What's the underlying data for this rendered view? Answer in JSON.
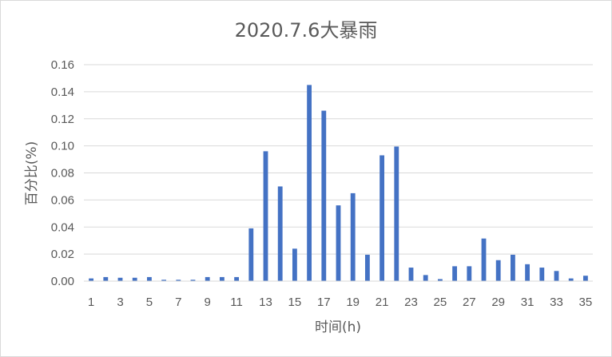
{
  "chart_data": {
    "type": "bar",
    "title": "2020.7.6大暴雨",
    "xlabel": "时间(h)",
    "ylabel": "百分比(%)",
    "ylim": [
      0,
      0.16
    ],
    "yticks": [
      "0.00",
      "0.02",
      "0.04",
      "0.06",
      "0.08",
      "0.10",
      "0.12",
      "0.14",
      "0.16"
    ],
    "categories": [
      1,
      2,
      3,
      4,
      5,
      6,
      7,
      8,
      9,
      10,
      11,
      12,
      13,
      14,
      15,
      16,
      17,
      18,
      19,
      20,
      21,
      22,
      23,
      24,
      25,
      26,
      27,
      28,
      29,
      30,
      31,
      32,
      33,
      34,
      35
    ],
    "xtick_labels": [
      "1",
      "3",
      "5",
      "7",
      "9",
      "11",
      "13",
      "15",
      "17",
      "19",
      "21",
      "23",
      "25",
      "27",
      "29",
      "31",
      "33",
      "35"
    ],
    "values": [
      0.002,
      0.003,
      0.0025,
      0.0025,
      0.003,
      0.001,
      0.001,
      0.001,
      0.003,
      0.003,
      0.003,
      0.039,
      0.096,
      0.07,
      0.024,
      0.145,
      0.126,
      0.056,
      0.065,
      0.0195,
      0.093,
      0.0995,
      0.01,
      0.0045,
      0.0015,
      0.011,
      0.011,
      0.0315,
      0.0155,
      0.0195,
      0.0125,
      0.01,
      0.0075,
      0.002,
      0.004
    ],
    "bar_color": "#4472C4",
    "grid": true,
    "legend": "none"
  }
}
